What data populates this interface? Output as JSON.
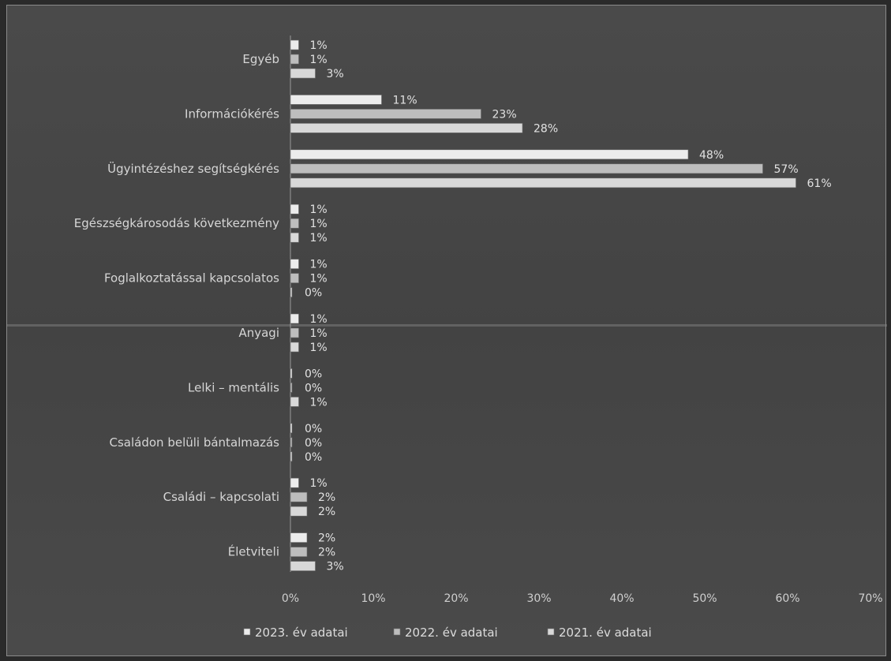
{
  "chart_data": {
    "type": "bar",
    "orientation": "horizontal",
    "categories": [
      "Egyéb",
      "Információkérés",
      "Ügyintézéshez segítségkérés",
      "Egészségkárosodás következmény",
      "Foglalkoztatással kapcsolatos",
      "Anyagi",
      "Lelki – mentális",
      "Családon belüli bántalmazás",
      "Családi – kapcsolati",
      "Életviteli"
    ],
    "series": [
      {
        "name": "2023. év adatai",
        "color": "#ececec",
        "values": [
          1,
          11,
          48,
          1,
          1,
          1,
          0,
          0,
          1,
          2
        ],
        "labels": [
          "1%",
          "11%",
          "48%",
          "1%",
          "1%",
          "1%",
          "0%",
          "0%",
          "1%",
          "2%"
        ]
      },
      {
        "name": "2022. év adatai",
        "color": "#bdbdbd",
        "values": [
          1,
          23,
          57,
          1,
          1,
          1,
          0,
          0,
          2,
          2
        ],
        "labels": [
          "1%",
          "23%",
          "57%",
          "1%",
          "1%",
          "1%",
          "0%",
          "0%",
          "2%",
          "2%"
        ]
      },
      {
        "name": "2021. év adatai",
        "color": "#d8d8d8",
        "values": [
          3,
          28,
          61,
          1,
          0,
          1,
          1,
          0,
          2,
          3
        ],
        "labels": [
          "3%",
          "28%",
          "61%",
          "1%",
          "0%",
          "1%",
          "1%",
          "0%",
          "2%",
          "3%"
        ]
      }
    ],
    "x_ticks": [
      "0%",
      "10%",
      "20%",
      "30%",
      "40%",
      "50%",
      "60%",
      "70%"
    ],
    "xlim": [
      0,
      70
    ],
    "legend_position": "bottom",
    "grid": false
  }
}
